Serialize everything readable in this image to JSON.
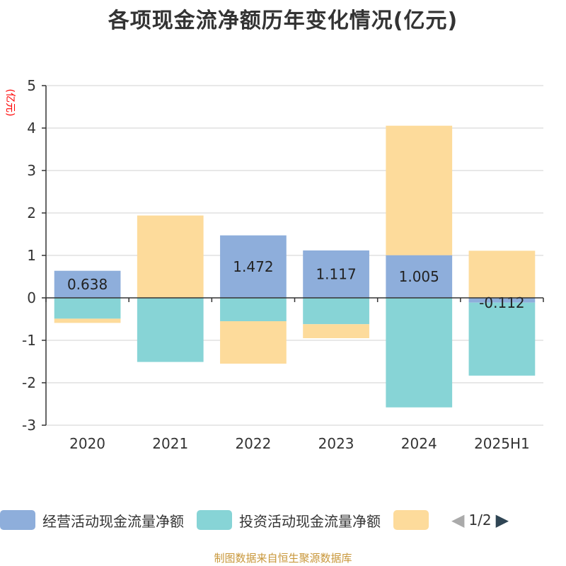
{
  "chart_data": {
    "type": "bar",
    "stacked": true,
    "title": "各项现金流净额历年变化情况(亿元)",
    "ylabel": "(亿元)",
    "xlabel": "",
    "ylim": [
      -3,
      5
    ],
    "yticks": [
      5,
      4,
      3,
      2,
      1,
      0,
      -1,
      -2,
      -3
    ],
    "categories": [
      "2020",
      "2021",
      "2022",
      "2023",
      "2024",
      "2025H1"
    ],
    "series": [
      {
        "name": "经营活动现金流量净额",
        "color": "#8eaedb",
        "values": [
          0.638,
          -0.01,
          1.472,
          1.117,
          1.005,
          -0.112
        ],
        "labels": [
          "0.638",
          "",
          "1.472",
          "1.117",
          "1.005",
          "-0.112"
        ]
      },
      {
        "name": "投资活动现金流量净额",
        "color": "#87d4d6",
        "values": [
          -0.49,
          -1.5,
          -0.55,
          -0.62,
          -2.58,
          -1.72
        ]
      },
      {
        "name": "",
        "color": "#fddb9b",
        "values": [
          -0.1,
          1.94,
          -1.0,
          -0.33,
          3.05,
          1.11
        ]
      }
    ],
    "legend": {
      "position": "bottom",
      "pager_text": "1/2"
    },
    "grid": true
  },
  "source_note": "制图数据来自恒生聚源数据库"
}
